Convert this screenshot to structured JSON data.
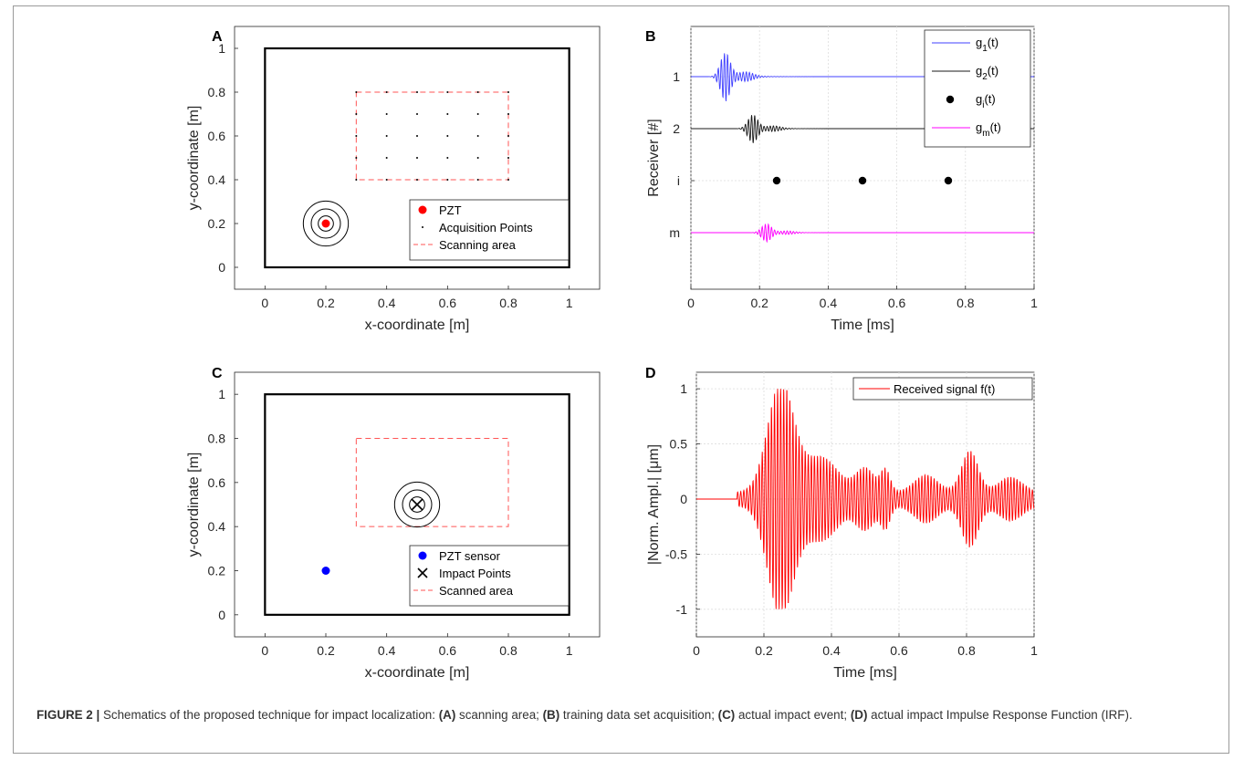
{
  "figure": {
    "caption": {
      "label": "FIGURE 2 |",
      "intro": "Schematics of the proposed technique for impact localization:",
      "items": [
        {
          "tag": "(A)",
          "text": "scanning area;"
        },
        {
          "tag": "(B)",
          "text": "training data set acquisition;"
        },
        {
          "tag": "(C)",
          "text": "actual impact event;"
        },
        {
          "tag": "(D)",
          "text": "actual impact Impulse Response Function (IRF)."
        }
      ]
    }
  },
  "chart_data": [
    {
      "panel": "A",
      "type": "scatter",
      "xlabel": "x-coordinate [m]",
      "ylabel": "y-coordinate [m]",
      "xlim": [
        -0.1,
        1.1
      ],
      "ylim": [
        -0.1,
        1.1
      ],
      "xticks": [
        "0",
        "0.2",
        "0.4",
        "0.6",
        "0.8",
        "1"
      ],
      "yticks": [
        "0",
        "0.2",
        "0.4",
        "0.6",
        "0.8",
        "1"
      ],
      "plate": {
        "x": [
          0,
          1
        ],
        "y": [
          0,
          1
        ]
      },
      "scan_area": {
        "x": [
          0.3,
          0.8
        ],
        "y": [
          0.4,
          0.8
        ]
      },
      "pzt": {
        "x": 0.2,
        "y": 0.2,
        "color": "#ff0000"
      },
      "wave_rings_radius": [
        0.025,
        0.048,
        0.074
      ],
      "acquisition_x": [
        0.3,
        0.4,
        0.5,
        0.6,
        0.7,
        0.8
      ],
      "acquisition_y": [
        0.4,
        0.5,
        0.6,
        0.7,
        0.8
      ],
      "legend": [
        "PZT",
        "Acquisition Points",
        "Scanning area"
      ],
      "legend_position": "bottom-right"
    },
    {
      "panel": "B",
      "type": "line",
      "xlabel": "Time [ms]",
      "ylabel": "Receiver [#]",
      "xlim": [
        0,
        1
      ],
      "xticks": [
        "0",
        "0.2",
        "0.4",
        "0.6",
        "0.8",
        "1"
      ],
      "yticks": [
        "1",
        "2",
        "i",
        "m"
      ],
      "series": [
        {
          "name_main": "g",
          "name_sub": "1",
          "name_tail": "(t)",
          "row": 1,
          "onset": 0.05,
          "peak": 0.1,
          "amp": 0.65,
          "color": "#4040ff"
        },
        {
          "name_main": "g",
          "name_sub": "2",
          "name_tail": "(t)",
          "row": 2,
          "onset": 0.12,
          "peak": 0.18,
          "amp": 0.38,
          "color": "#1a1a1a"
        },
        {
          "name_main": "g",
          "name_sub": "i",
          "name_tail": "(t)",
          "row": 3,
          "dots_x": [
            0.25,
            0.5,
            0.75
          ],
          "color": "#000000"
        },
        {
          "name_main": "g",
          "name_sub": "m",
          "name_tail": "(t)",
          "row": 4,
          "onset": 0.16,
          "peak": 0.22,
          "amp": 0.24,
          "color": "#ff00ff"
        }
      ],
      "legend_position": "top-right",
      "grid": true
    },
    {
      "panel": "C",
      "type": "scatter",
      "xlabel": "x-coordinate [m]",
      "ylabel": "y-coordinate [m]",
      "xlim": [
        -0.1,
        1.1
      ],
      "ylim": [
        -0.1,
        1.1
      ],
      "xticks": [
        "0",
        "0.2",
        "0.4",
        "0.6",
        "0.8",
        "1"
      ],
      "yticks": [
        "0",
        "0.2",
        "0.4",
        "0.6",
        "0.8",
        "1"
      ],
      "plate": {
        "x": [
          0,
          1
        ],
        "y": [
          0,
          1
        ]
      },
      "scan_area": {
        "x": [
          0.3,
          0.8
        ],
        "y": [
          0.4,
          0.8
        ]
      },
      "pzt": {
        "x": 0.2,
        "y": 0.2,
        "color": "#0000ff"
      },
      "impact": {
        "x": 0.5,
        "y": 0.5
      },
      "wave_rings_radius": [
        0.025,
        0.048,
        0.074
      ],
      "legend": [
        "PZT sensor",
        "Impact Points",
        "Scanned area"
      ],
      "legend_position": "bottom-right"
    },
    {
      "panel": "D",
      "type": "line",
      "xlabel": "Time [ms]",
      "ylabel": "|Norm. Ampl.| [μm]",
      "xlim": [
        0,
        1
      ],
      "ylim": [
        -1.25,
        1.15
      ],
      "xticks": [
        "0",
        "0.2",
        "0.4",
        "0.6",
        "0.8",
        "1"
      ],
      "yticks": [
        "-1",
        "-0.5",
        "0",
        "0.5",
        "1"
      ],
      "series": [
        {
          "name": "Received signal f(t)",
          "color": "#ff0000",
          "onset": 0.12,
          "peak_value": 1.0,
          "peak_time": 0.25
        }
      ],
      "legend_position": "top-right",
      "grid": true
    }
  ]
}
